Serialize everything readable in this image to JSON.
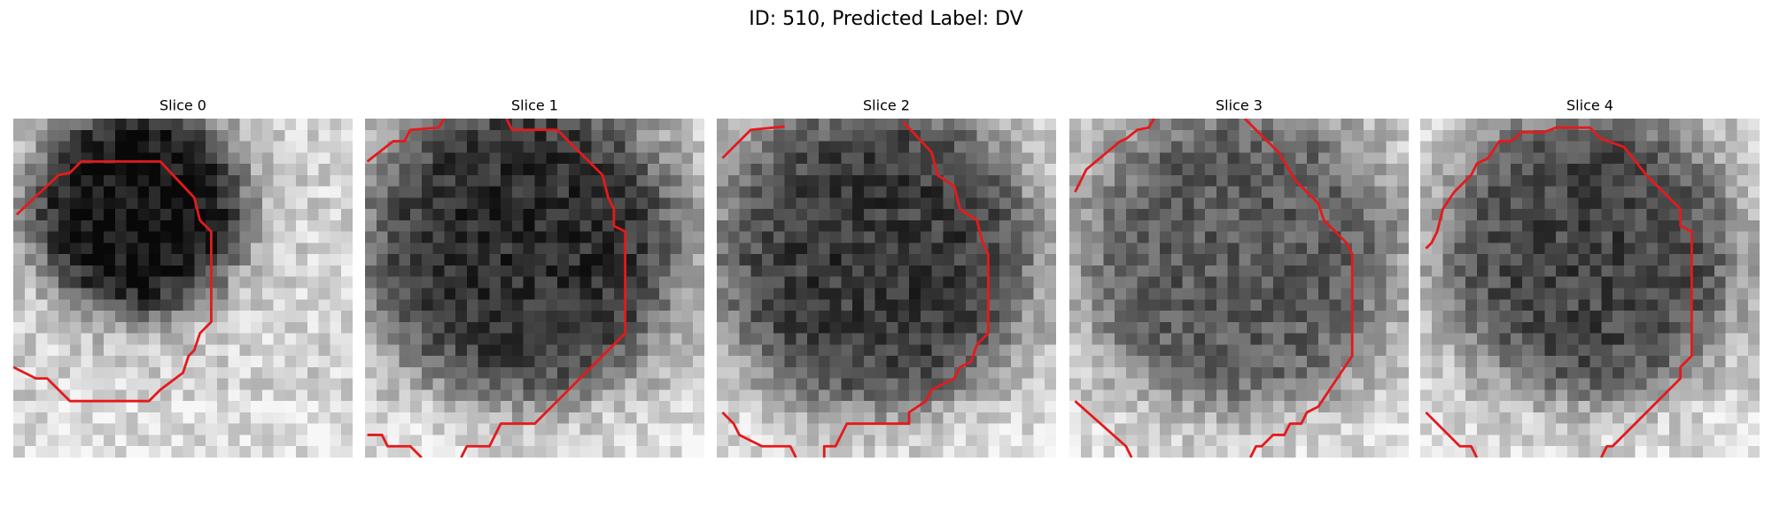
{
  "title": "ID: 510, Predicted Label: DV",
  "panels": [
    {
      "title": "Slice 0"
    },
    {
      "title": "Slice 1"
    },
    {
      "title": "Slice 2"
    },
    {
      "title": "Slice 3"
    },
    {
      "title": "Slice 4"
    }
  ]
}
